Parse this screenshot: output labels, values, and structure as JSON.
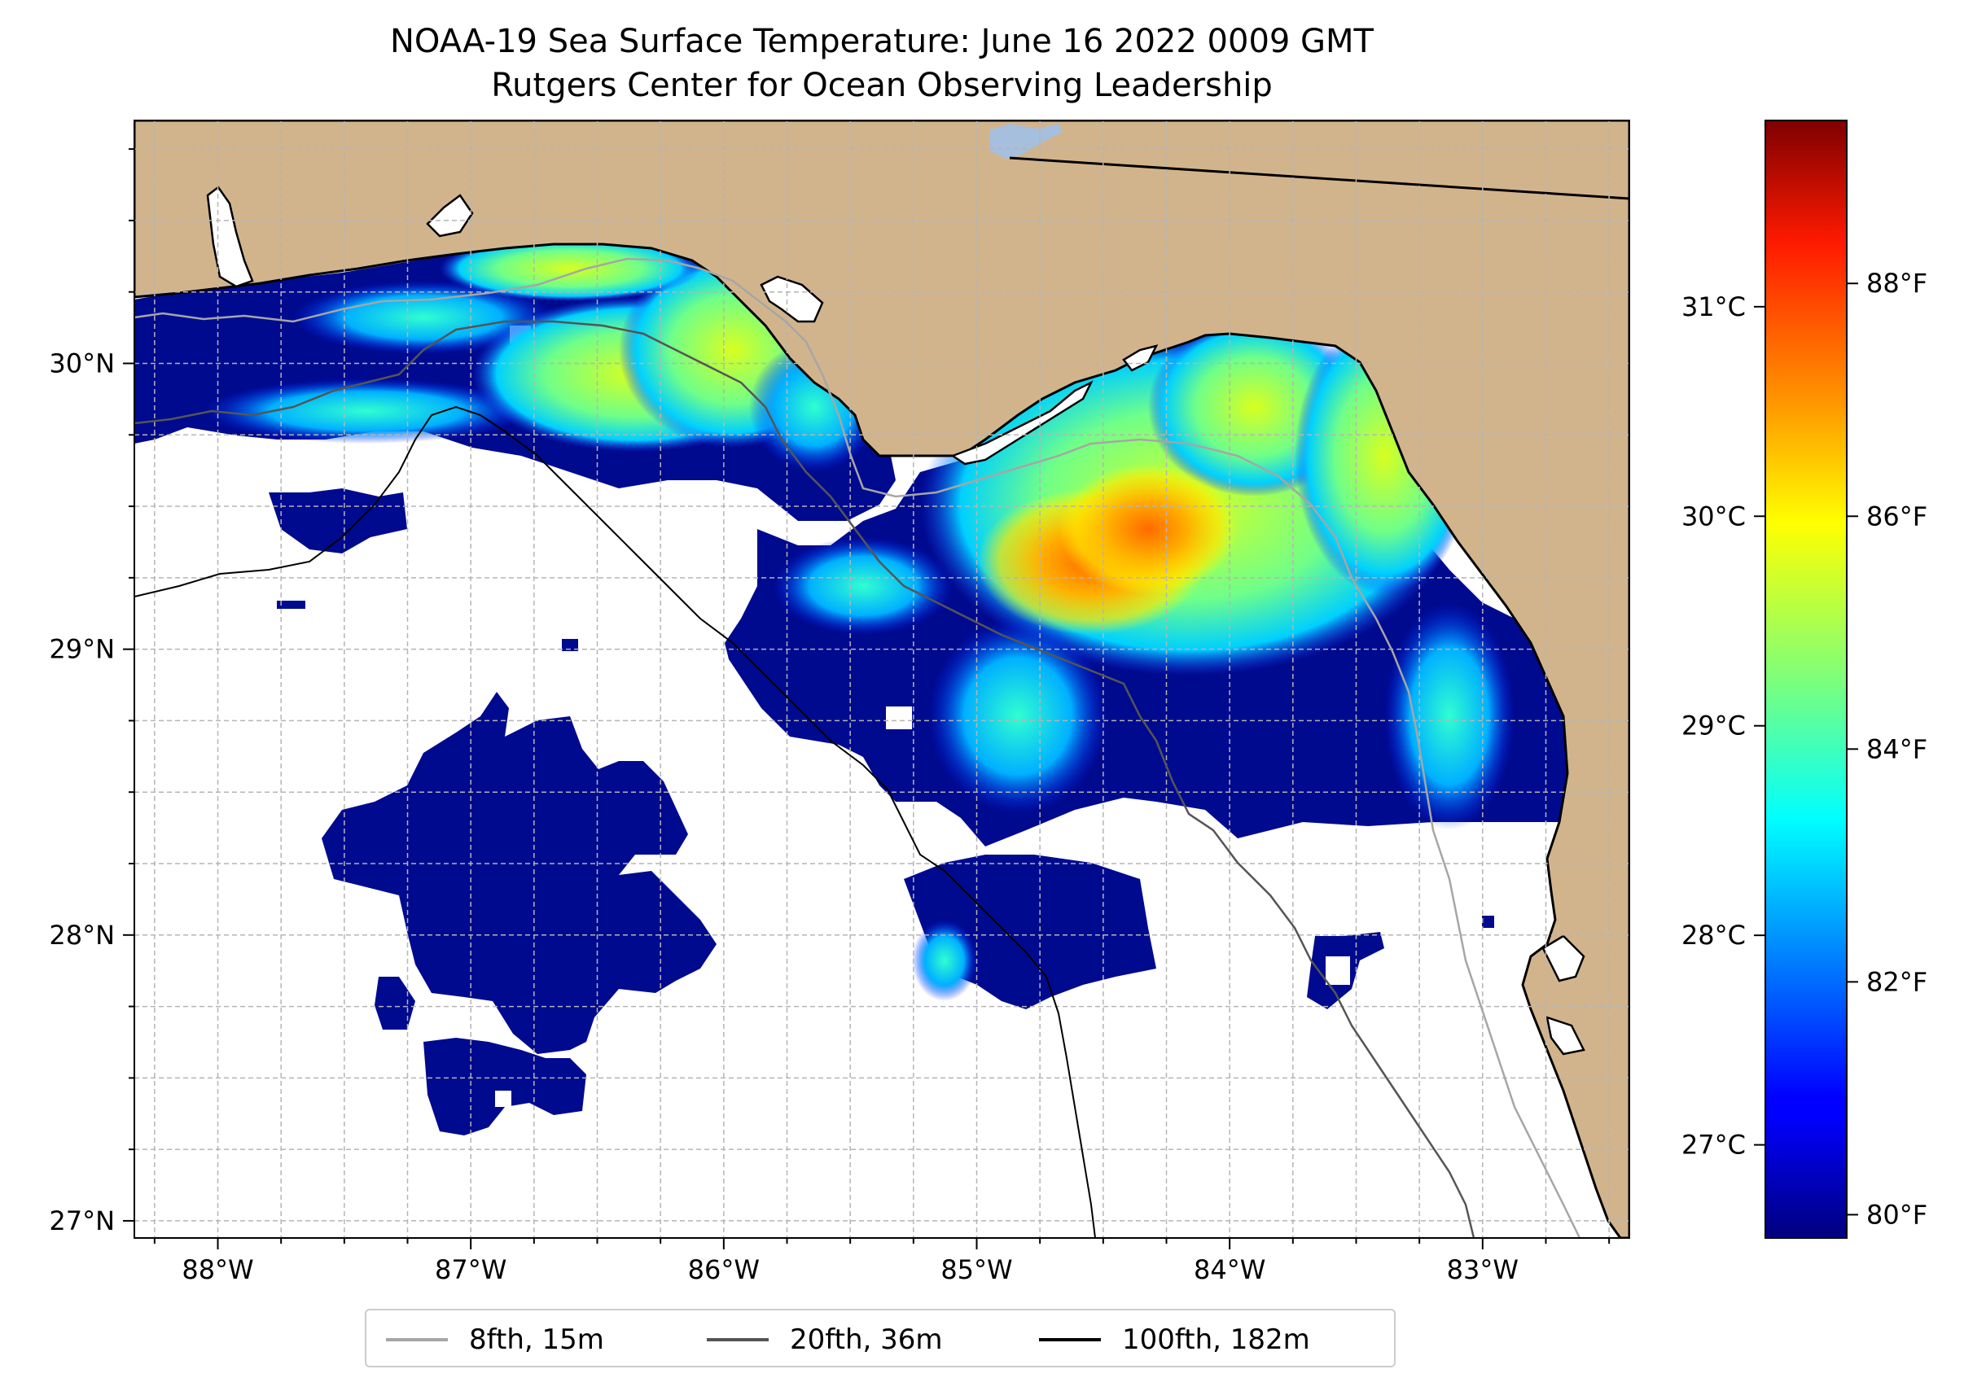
{
  "title": {
    "line1": "NOAA-19 Sea Surface Temperature: June 16 2022 0009 GMT",
    "line2": "Rutgers Center for Ocean Observing Leadership"
  },
  "map": {
    "extent": {
      "lon_min": -88.33,
      "lon_max": -82.42,
      "lat_min": 26.94,
      "lat_max": 30.85
    },
    "land_color": "#d2b48c",
    "water_color": "#ffffff",
    "lake_color": "#a5bfdd",
    "grid": true,
    "lon_ticks": [
      {
        "value": -88,
        "label": "88°W"
      },
      {
        "value": -87,
        "label": "87°W"
      },
      {
        "value": -86,
        "label": "86°W"
      },
      {
        "value": -85,
        "label": "85°W"
      },
      {
        "value": -84,
        "label": "84°W"
      },
      {
        "value": -83,
        "label": "83°W"
      }
    ],
    "lat_ticks": [
      {
        "value": 27,
        "label": "27°N"
      },
      {
        "value": 28,
        "label": "28°N"
      },
      {
        "value": 29,
        "label": "29°N"
      },
      {
        "value": 30,
        "label": "30°N"
      }
    ]
  },
  "colorbar": {
    "colormap": "jet",
    "min_f": 79.8,
    "max_f": 89.4,
    "fahrenheit_ticks": [
      {
        "value": 80,
        "label": "80°F"
      },
      {
        "value": 82,
        "label": "82°F"
      },
      {
        "value": 84,
        "label": "84°F"
      },
      {
        "value": 86,
        "label": "86°F"
      },
      {
        "value": 88,
        "label": "88°F"
      }
    ],
    "celsius_ticks": [
      {
        "value": 27,
        "label": "27°C"
      },
      {
        "value": 28,
        "label": "28°C"
      },
      {
        "value": 29,
        "label": "29°C"
      },
      {
        "value": 30,
        "label": "30°C"
      },
      {
        "value": 31,
        "label": "31°C"
      }
    ]
  },
  "legend": {
    "placement": "bottom-center",
    "items": [
      {
        "label": "8fth, 15m",
        "color": "#a6a6a6"
      },
      {
        "label": "20fth, 36m",
        "color": "#555555"
      },
      {
        "label": "100fth, 182m",
        "color": "#000000"
      }
    ]
  }
}
